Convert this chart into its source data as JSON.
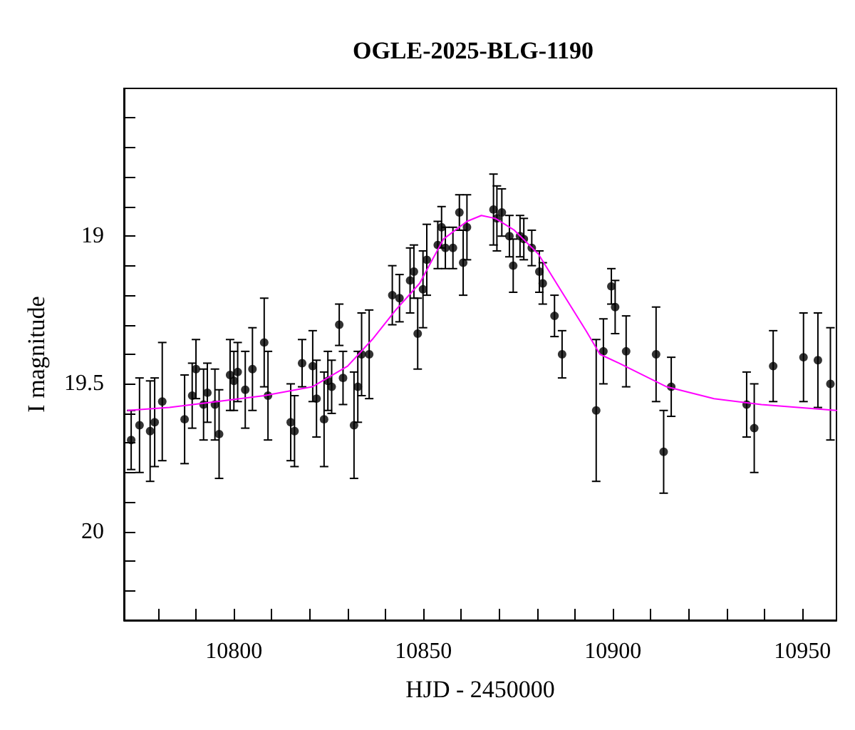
{
  "chart_data": {
    "type": "scatter",
    "title": "OGLE-2025-BLG-1190",
    "xlabel": "HJD - 2450000",
    "ylabel": "I magnitude",
    "xlim": [
      10771,
      10959
    ],
    "ylim": [
      20.3,
      18.5
    ],
    "xticks": [
      {
        "value": 10780,
        "label": null
      },
      {
        "value": 10790,
        "label": null
      },
      10800,
      {
        "value": 10810,
        "label": null
      },
      {
        "value": 10820,
        "label": null
      },
      {
        "value": 10830,
        "label": null
      },
      {
        "value": 10840,
        "label": null
      },
      10850,
      {
        "value": 10860,
        "label": null
      },
      {
        "value": 10870,
        "label": null
      },
      {
        "value": 10880,
        "label": null
      },
      {
        "value": 10890,
        "label": null
      },
      10900,
      {
        "value": 10910,
        "label": null
      },
      {
        "value": 10920,
        "label": null
      },
      {
        "value": 10930,
        "label": null
      },
      {
        "value": 10940,
        "label": null
      },
      10950
    ],
    "yticks": [
      {
        "value": 18.6,
        "label": null
      },
      {
        "value": 18.7,
        "label": null
      },
      {
        "value": 18.8,
        "label": null
      },
      {
        "value": 18.9,
        "label": null
      },
      19,
      {
        "value": 19.1,
        "label": null
      },
      {
        "value": 19.2,
        "label": null
      },
      {
        "value": 19.3,
        "label": null
      },
      {
        "value": 19.4,
        "label": null
      },
      19.5,
      {
        "value": 19.6,
        "label": null
      },
      {
        "value": 19.7,
        "label": null
      },
      {
        "value": 19.8,
        "label": null
      },
      {
        "value": 19.9,
        "label": null
      },
      20,
      {
        "value": 20.1,
        "label": null
      },
      {
        "value": 20.2,
        "label": null
      }
    ],
    "grid": false,
    "series": [
      {
        "color": "#000000",
        "marker": "circle",
        "x": [
          10772.9,
          10775.1,
          10777.9,
          10779.1,
          10781.1,
          10787,
          10789,
          10790,
          10792,
          10793,
          10795,
          10796.1,
          10799,
          10800,
          10801,
          10803,
          10804.9,
          10808,
          10809,
          10815,
          10816,
          10818,
          10820.8,
          10821.8,
          10823.8,
          10824.8,
          10825.8,
          10827.8,
          10828.8,
          10831.7,
          10832.7,
          10833.7,
          10835.7,
          10841.8,
          10843.7,
          10846.5,
          10847.5,
          10848.5,
          10849.9,
          10850.9,
          10853.8,
          10854.8,
          10855.8,
          10857.8,
          10859.5,
          10860.5,
          10861.5,
          10868.5,
          10869.4,
          10870.7,
          10872.7,
          10873.7,
          10875.5,
          10876.5,
          10878.6,
          10880.6,
          10881.5,
          10884.6,
          10886.6,
          10895.6,
          10897.5,
          10899.6,
          10900.6,
          10903.5,
          10911.4,
          10913.4,
          10915.4,
          10935.3,
          10937.3,
          10942.3,
          10950.3,
          10954.1,
          10957.4
        ],
        "values": [
          19.69,
          19.64,
          19.66,
          19.63,
          19.56,
          19.62,
          19.54,
          19.45,
          19.57,
          19.53,
          19.57,
          19.67,
          19.47,
          19.49,
          19.46,
          19.52,
          19.45,
          19.36,
          19.54,
          19.63,
          19.66,
          19.43,
          19.44,
          19.55,
          19.62,
          19.49,
          19.51,
          19.3,
          19.48,
          19.64,
          19.51,
          19.4,
          19.4,
          19.2,
          19.21,
          19.15,
          19.12,
          19.33,
          19.18,
          19.08,
          19.03,
          18.97,
          19.04,
          19.04,
          18.92,
          19.09,
          18.97,
          18.91,
          18.94,
          18.92,
          19,
          19.1,
          19,
          19.01,
          19.04,
          19.12,
          19.16,
          19.27,
          19.4,
          19.59,
          19.39,
          19.17,
          19.24,
          19.39,
          19.4,
          19.73,
          19.51,
          19.57,
          19.65,
          19.44,
          19.41,
          19.42,
          19.5
        ],
        "errors": [
          0.1,
          0.16,
          0.17,
          0.15,
          0.2,
          0.15,
          0.11,
          0.1,
          0.12,
          0.1,
          0.12,
          0.15,
          0.12,
          0.1,
          0.1,
          0.13,
          0.14,
          0.15,
          0.15,
          0.13,
          0.12,
          0.08,
          0.12,
          0.13,
          0.16,
          0.1,
          0.09,
          0.07,
          0.09,
          0.18,
          0.12,
          0.14,
          0.15,
          0.1,
          0.08,
          0.11,
          0.09,
          0.12,
          0.13,
          0.12,
          0.08,
          0.07,
          0.07,
          0.07,
          0.06,
          0.11,
          0.11,
          0.12,
          0.11,
          0.08,
          0.07,
          0.09,
          0.07,
          0.07,
          0.06,
          0.07,
          0.07,
          0.07,
          0.08,
          0.24,
          0.11,
          0.06,
          0.09,
          0.12,
          0.16,
          0.14,
          0.1,
          0.11,
          0.15,
          0.12,
          0.15,
          0.16,
          0.19
        ]
      },
      {
        "type": "line",
        "color": "#ff00ff",
        "marker": "none",
        "line_style": "solid",
        "x": [
          10772,
          10783,
          10795.6,
          10808,
          10820.7,
          10830,
          10836.5,
          10842.7,
          10849,
          10855.3,
          10861.5,
          10865.3,
          10869,
          10874,
          10880.3,
          10886.6,
          10892.9,
          10896.6,
          10901.6,
          10914.2,
          10926.7,
          10939.2,
          10959
        ],
        "values": [
          19.59,
          19.58,
          19.56,
          19.54,
          19.51,
          19.44,
          19.35,
          19.25,
          19.16,
          19.01,
          18.95,
          18.93,
          18.94,
          18.98,
          19.06,
          19.19,
          19.32,
          19.4,
          19.43,
          19.51,
          19.55,
          19.57,
          19.59
        ]
      }
    ]
  }
}
